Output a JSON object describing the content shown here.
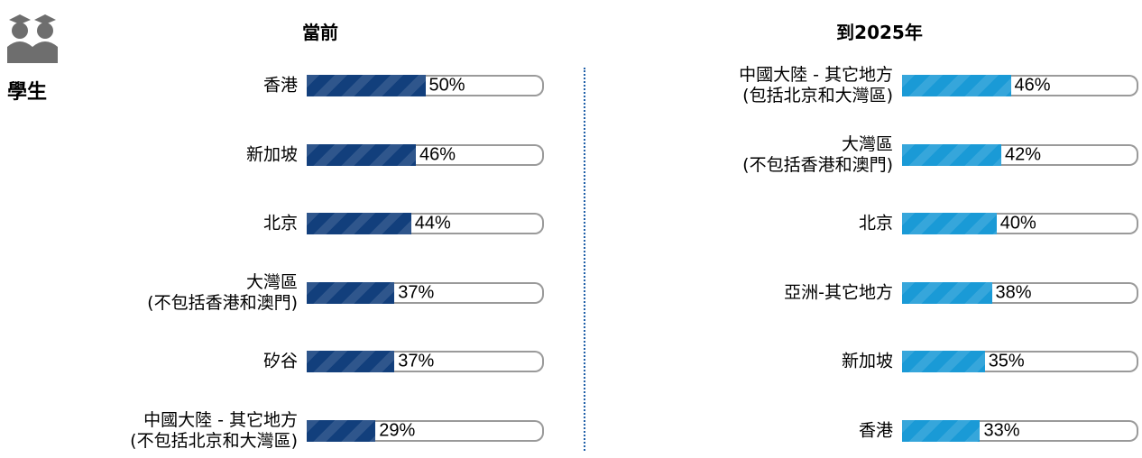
{
  "label": "學生",
  "chart_data": [
    {
      "type": "bar",
      "title": "當前",
      "color": "#123f7c",
      "xlim": [
        0,
        100
      ],
      "categories": [
        "香港",
        "新加坡",
        "北京",
        "大灣區\n(不包括香港和澳門)",
        "矽谷",
        "中國大陸 - 其它地方\n(不包括北京和大灣區)"
      ],
      "values": [
        50,
        46,
        44,
        37,
        37,
        29
      ],
      "value_labels": [
        "50%",
        "46%",
        "44%",
        "37%",
        "37%",
        "29%"
      ]
    },
    {
      "type": "bar",
      "title": "到2025年",
      "color": "#1a9ad6",
      "xlim": [
        0,
        100
      ],
      "categories": [
        "中國大陸 - 其它地方\n(包括北京和大灣區)",
        "大灣區\n(不包括香港和澳門)",
        "北京",
        "亞洲-其它地方",
        "新加坡",
        "香港"
      ],
      "values": [
        46,
        42,
        40,
        38,
        35,
        33
      ],
      "value_labels": [
        "46%",
        "42%",
        "40%",
        "38%",
        "35%",
        "33%"
      ]
    }
  ]
}
